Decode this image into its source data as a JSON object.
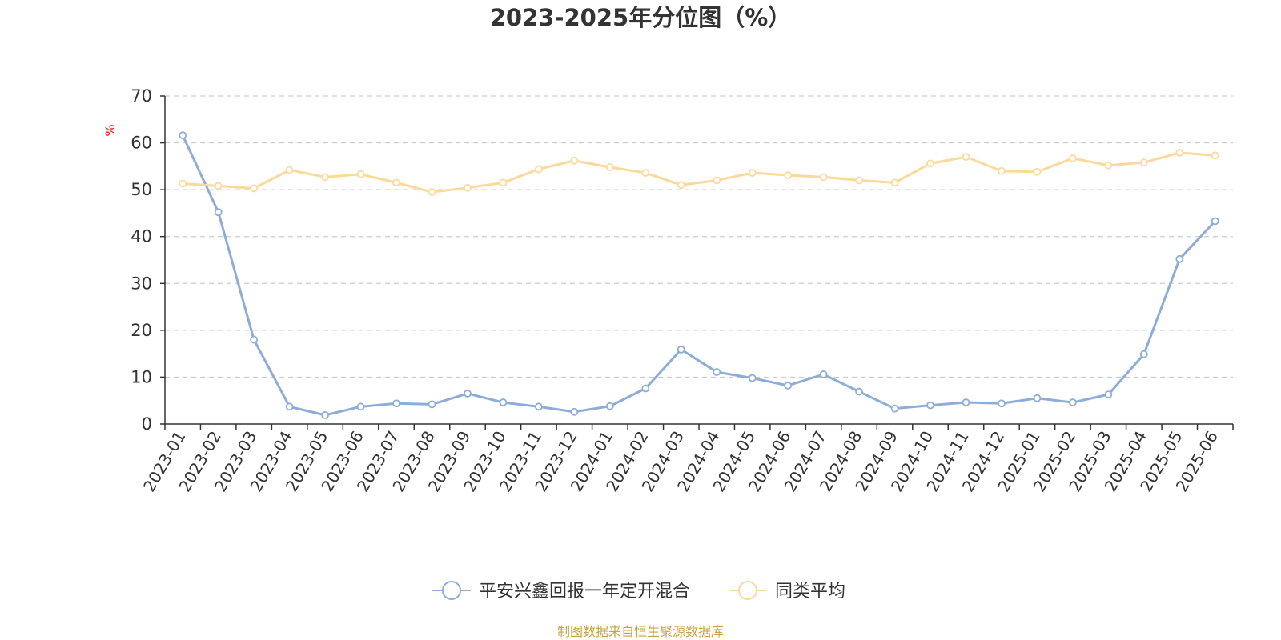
{
  "chart_data": {
    "type": "line",
    "title": "2023-2025年分位图（%）",
    "ylabel": "%",
    "ylim": [
      0,
      70
    ],
    "yticks": [
      0,
      10,
      20,
      30,
      40,
      50,
      60,
      70
    ],
    "grid": true,
    "legend_position": "bottom",
    "categories": [
      "2023-01",
      "2023-02",
      "2023-03",
      "2023-04",
      "2023-05",
      "2023-06",
      "2023-07",
      "2023-08",
      "2023-09",
      "2023-10",
      "2023-11",
      "2023-12",
      "2024-01",
      "2024-02",
      "2024-03",
      "2024-04",
      "2024-05",
      "2024-06",
      "2024-07",
      "2024-08",
      "2024-09",
      "2024-10",
      "2024-11",
      "2024-12",
      "2025-01",
      "2025-02",
      "2025-03",
      "2025-04",
      "2025-05",
      "2025-06"
    ],
    "series": [
      {
        "name": "平安兴鑫回报一年定开混合",
        "color": "#8eacd8",
        "values": [
          61.6,
          45.2,
          18.0,
          3.7,
          1.9,
          3.7,
          4.4,
          4.2,
          6.5,
          4.6,
          3.7,
          2.6,
          3.8,
          7.6,
          15.9,
          11.1,
          9.8,
          8.2,
          10.6,
          6.9,
          3.3,
          4.0,
          4.6,
          4.4,
          5.5,
          4.6,
          6.3,
          14.9,
          35.2,
          43.3
        ]
      },
      {
        "name": "同类平均",
        "color": "#fbd99a",
        "values": [
          51.3,
          50.8,
          50.3,
          54.2,
          52.7,
          53.3,
          51.5,
          49.5,
          50.4,
          51.5,
          54.4,
          56.2,
          54.8,
          53.6,
          51.0,
          52.0,
          53.6,
          53.1,
          52.7,
          52.0,
          51.5,
          55.6,
          57.0,
          54.0,
          53.8,
          56.7,
          55.2,
          55.8,
          57.9,
          57.3
        ]
      }
    ]
  },
  "source_note": "制图数据来自恒生聚源数据库"
}
